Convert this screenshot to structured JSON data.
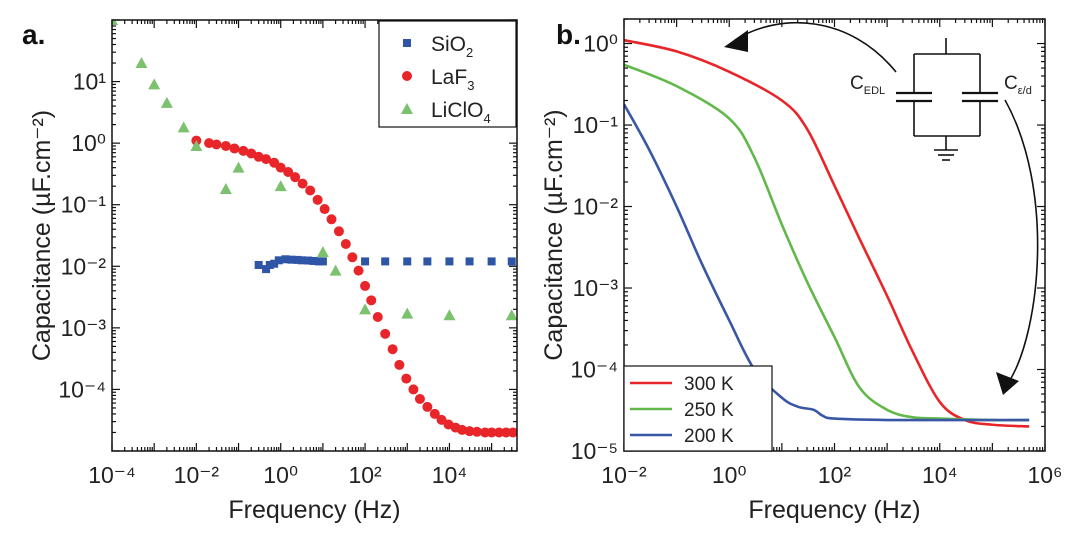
{
  "figure": {
    "panel_a_label": "a.",
    "panel_b_label": "b.",
    "circuit": {
      "label_edl": "C",
      "label_edl_sub": "EDL",
      "label_ed": "C",
      "label_ed_sub": "ε/d"
    }
  },
  "colors": {
    "red": "#e8262a",
    "blue": "#3a57a6",
    "green": "#62b84a",
    "green_marker": "#7cc16e",
    "blue_marker": "#2f55a7",
    "red_marker": "#e8262a",
    "axis": "#111111",
    "text": "#222222"
  },
  "chart_data": [
    {
      "type": "scatter",
      "panel": "a.",
      "xlabel": "Frequency (Hz)",
      "ylabel": "Capacitance (µF.cm⁻²)",
      "xscale": "log",
      "yscale": "log",
      "xlim": [
        0.0001,
        400000
      ],
      "ylim": [
        1e-05,
        100
      ],
      "xtick_exponents": [
        -4,
        -2,
        0,
        2,
        4
      ],
      "ytick_exponents": [
        1,
        0,
        -1,
        -2,
        -3,
        -4
      ],
      "legend_position": "top-right",
      "series": [
        {
          "name": "SiO2",
          "name_base": "SiO",
          "name_sub": "2",
          "marker": "square",
          "color": "#2f55a7",
          "x": [
            0.3,
            0.45,
            0.55,
            0.7,
            0.9,
            1.3,
            1.8,
            2.5,
            3.2,
            4.5,
            6,
            8,
            10,
            100,
            300,
            1000,
            3000,
            10000,
            30000,
            100000,
            300000
          ],
          "y": [
            0.0105,
            0.009,
            0.0105,
            0.011,
            0.0125,
            0.013,
            0.0128,
            0.0127,
            0.0125,
            0.0124,
            0.0122,
            0.012,
            0.012,
            0.012,
            0.012,
            0.012,
            0.012,
            0.012,
            0.012,
            0.012,
            0.012
          ]
        },
        {
          "name": "LaF3",
          "name_base": "LaF",
          "name_sub": "3",
          "marker": "circle",
          "color": "#e8262a",
          "x": [
            0.01,
            0.02,
            0.03,
            0.05,
            0.08,
            0.13,
            0.2,
            0.3,
            0.45,
            0.7,
            1,
            1.5,
            2.2,
            3.3,
            5,
            7.5,
            11,
            16,
            24,
            35,
            50,
            70,
            100,
            140,
            200,
            300,
            450,
            650,
            950,
            1400,
            2000,
            3000,
            4500,
            6500,
            9500,
            14000,
            20000,
            30000,
            45000,
            70000,
            100000,
            150000,
            220000,
            320000
          ],
          "y": [
            1.1,
            1.0,
            0.95,
            0.9,
            0.82,
            0.75,
            0.68,
            0.6,
            0.55,
            0.48,
            0.4,
            0.34,
            0.28,
            0.22,
            0.17,
            0.12,
            0.085,
            0.058,
            0.037,
            0.023,
            0.014,
            0.0085,
            0.0048,
            0.0028,
            0.0015,
            0.0008,
            0.00045,
            0.00025,
            0.00015,
            0.0001,
            7e-05,
            5.2e-05,
            4e-05,
            3.2e-05,
            2.7e-05,
            2.4e-05,
            2.2e-05,
            2.1e-05,
            2.05e-05,
            2e-05,
            2e-05,
            2e-05,
            2e-05,
            2e-05
          ]
        },
        {
          "name": "LiClO4",
          "name_base": "LiClO",
          "name_sub": "4",
          "marker": "triangle",
          "color": "#7cc16e",
          "x": [
            0.0001,
            0.0005,
            0.001,
            0.002,
            0.005,
            0.01,
            0.05,
            0.1,
            1,
            10,
            20,
            100,
            1000,
            10000,
            300000
          ],
          "y": [
            100,
            20,
            9,
            4.5,
            1.8,
            0.9,
            0.18,
            0.4,
            0.2,
            0.017,
            0.0085,
            0.002,
            0.0017,
            0.0016,
            0.0016
          ]
        }
      ]
    },
    {
      "type": "line",
      "panel": "b.",
      "xlabel": "Frequency (Hz)",
      "ylabel": "Capacitance (µF.cm⁻²)",
      "xscale": "log",
      "yscale": "log",
      "xlim": [
        0.01,
        1000000
      ],
      "ylim": [
        1e-05,
        2
      ],
      "xtick_exponents": [
        -2,
        0,
        2,
        4,
        6
      ],
      "ytick_exponents": [
        0,
        -1,
        -2,
        -3,
        -4,
        -5
      ],
      "legend_position": "bottom-left",
      "series": [
        {
          "name": "300 K",
          "color": "#e8262a",
          "x": [
            0.01,
            0.1,
            1,
            10,
            30,
            100,
            300,
            1000,
            3000,
            10000,
            30000,
            100000,
            500000
          ],
          "y": [
            1.1,
            0.8,
            0.45,
            0.2,
            0.09,
            0.018,
            0.004,
            0.0008,
            0.00017,
            4e-05,
            2.4e-05,
            2.1e-05,
            2e-05
          ]
        },
        {
          "name": "250 K",
          "color": "#62b84a",
          "x": [
            0.01,
            0.1,
            1,
            3,
            10,
            30,
            100,
            300,
            1000,
            3000,
            10000,
            100000,
            500000
          ],
          "y": [
            0.55,
            0.3,
            0.12,
            0.04,
            0.006,
            0.0012,
            0.00025,
            6e-05,
            3.2e-05,
            2.6e-05,
            2.5e-05,
            2.4e-05,
            2.4e-05
          ]
        },
        {
          "name": "200 K",
          "color": "#3a57a6",
          "x": [
            0.01,
            0.03,
            0.1,
            0.3,
            1,
            3,
            10,
            20,
            40,
            60,
            100,
            1000,
            10000,
            100000,
            500000
          ],
          "y": [
            0.18,
            0.05,
            0.01,
            0.002,
            0.0004,
            0.0001,
            4.5e-05,
            3.5e-05,
            3.2e-05,
            2.7e-05,
            2.5e-05,
            2.4e-05,
            2.4e-05,
            2.4e-05,
            2.4e-05
          ]
        }
      ]
    }
  ]
}
